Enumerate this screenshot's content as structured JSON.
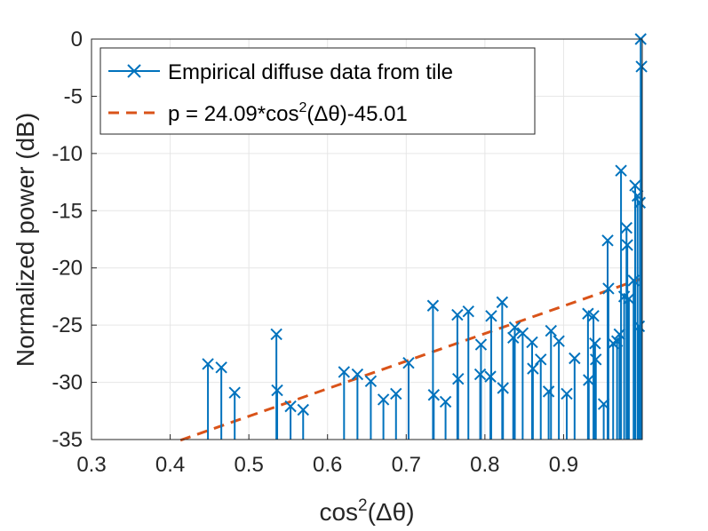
{
  "chart_data": {
    "type": "scatter",
    "xlabel": "cos²(Δθ)",
    "ylabel": "Normalized power (dB)",
    "xlim": [
      0.3,
      1.0
    ],
    "ylim": [
      -35,
      0
    ],
    "grid": true,
    "legend_position": "top-left",
    "x_ticks": [
      "0.3",
      "0.4",
      "0.5",
      "0.6",
      "0.7",
      "0.8",
      "0.9"
    ],
    "y_ticks": [
      "0",
      "-5",
      "-10",
      "-15",
      "-20",
      "-25",
      "-30",
      "-35"
    ],
    "colors": {
      "stems": "#0072BD",
      "fit": "#D95319"
    },
    "series": [
      {
        "name": "Empirical diffuse data from tile",
        "style": "stem",
        "marker": "x",
        "points": [
          [
            0.448,
            -28.4
          ],
          [
            0.465,
            -28.7
          ],
          [
            0.482,
            -30.9
          ],
          [
            0.535,
            -25.8
          ],
          [
            0.536,
            -30.7
          ],
          [
            0.553,
            -32.1
          ],
          [
            0.569,
            -32.4
          ],
          [
            0.621,
            -29.1
          ],
          [
            0.638,
            -29.3
          ],
          [
            0.655,
            -29.9
          ],
          [
            0.671,
            -31.5
          ],
          [
            0.687,
            -31.0
          ],
          [
            0.703,
            -28.3
          ],
          [
            0.734,
            -23.3
          ],
          [
            0.735,
            -31.1
          ],
          [
            0.75,
            -31.7
          ],
          [
            0.765,
            -24.1
          ],
          [
            0.766,
            -29.7
          ],
          [
            0.779,
            -23.8
          ],
          [
            0.794,
            -29.3
          ],
          [
            0.795,
            -26.7
          ],
          [
            0.807,
            -29.5
          ],
          [
            0.808,
            -24.2
          ],
          [
            0.822,
            -23.0
          ],
          [
            0.823,
            -30.5
          ],
          [
            0.836,
            -26.1
          ],
          [
            0.838,
            -25.2
          ],
          [
            0.848,
            -25.7
          ],
          [
            0.86,
            -26.5
          ],
          [
            0.861,
            -28.8
          ],
          [
            0.871,
            -28.0
          ],
          [
            0.881,
            -30.8
          ],
          [
            0.884,
            -25.5
          ],
          [
            0.894,
            -26.4
          ],
          [
            0.904,
            -31.0
          ],
          [
            0.914,
            -27.9
          ],
          [
            0.931,
            -24.0
          ],
          [
            0.932,
            -29.8
          ],
          [
            0.938,
            -24.2
          ],
          [
            0.94,
            -26.6
          ],
          [
            0.941,
            -28.0
          ],
          [
            0.951,
            -31.9
          ],
          [
            0.956,
            -17.6
          ],
          [
            0.957,
            -21.8
          ],
          [
            0.963,
            -26.6
          ],
          [
            0.968,
            -26.4
          ],
          [
            0.971,
            -25.8
          ],
          [
            0.973,
            -11.5
          ],
          [
            0.977,
            -22.5
          ],
          [
            0.98,
            -16.5
          ],
          [
            0.981,
            -18.0
          ],
          [
            0.983,
            -22.7
          ],
          [
            0.989,
            -21.1
          ],
          [
            0.991,
            -12.8
          ],
          [
            0.994,
            -13.7
          ],
          [
            0.996,
            -25.1
          ],
          [
            0.997,
            -14.3
          ],
          [
            0.998,
            0.0
          ],
          [
            0.999,
            -2.4
          ]
        ]
      },
      {
        "name": "p = 24.09*cos²(Δθ)-45.01",
        "style": "dashed-line",
        "slope": 24.09,
        "intercept": -45.01,
        "x_range": [
          0.413,
          1.0
        ]
      }
    ]
  },
  "legend": {
    "item1": "Empirical diffuse data from tile",
    "item2_prefix": "p = 24.09*cos",
    "item2_sup": "2",
    "item2_suffix": "(Δθ)-45.01"
  },
  "axes_text": {
    "xlabel_base": "cos",
    "xlabel_sup": "2",
    "xlabel_arg": "(Δθ)",
    "ylabel": "Normalized power (dB)"
  }
}
